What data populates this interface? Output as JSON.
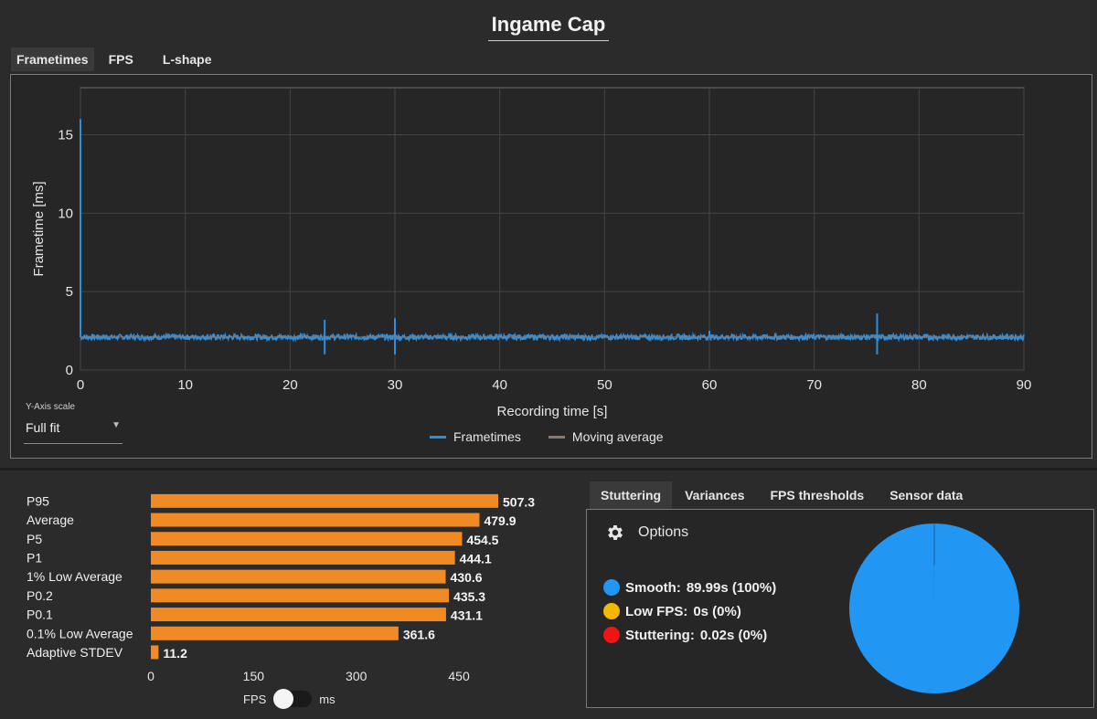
{
  "header": {
    "title": "Ingame Cap"
  },
  "top_tabs": [
    "Frametimes",
    "FPS",
    "L-shape"
  ],
  "yaxis_scale": {
    "label": "Y-Axis scale",
    "value": "Full fit"
  },
  "legend": [
    {
      "label": "Frametimes",
      "color": "#2d8fe0"
    },
    {
      "label": "Moving average",
      "color": "#8a7a70"
    }
  ],
  "bottom_tabs": [
    "Stuttering",
    "Variances",
    "FPS thresholds",
    "Sensor data"
  ],
  "options_label": "Options",
  "stutter_stats": [
    {
      "label": "Smooth:",
      "value": "89.99s (100%)",
      "color": "#2196f3"
    },
    {
      "label": "Low FPS:",
      "value": "0s (0%)",
      "color": "#f5b800"
    },
    {
      "label": "Stuttering:",
      "value": "0.02s (0%)",
      "color": "#f01414"
    }
  ],
  "toggle": {
    "left": "FPS",
    "right": "ms"
  },
  "chart_data": [
    {
      "type": "line",
      "title": "",
      "xlabel": "Recording time [s]",
      "ylabel": "Frametime [ms]",
      "xlim": [
        0,
        90
      ],
      "ylim": [
        0,
        18
      ],
      "xticks": [
        0,
        10,
        20,
        30,
        40,
        50,
        60,
        70,
        80,
        90
      ],
      "yticks": [
        0,
        5,
        10,
        15
      ],
      "grid": true,
      "series": [
        {
          "name": "Frametimes",
          "color": "#2d8fe0",
          "baseline": 2.1,
          "spikes": [
            {
              "x": 0.0,
              "y": 16.0
            },
            {
              "x": 23.3,
              "y": 3.2
            },
            {
              "x": 23.3,
              "y": 1.0
            },
            {
              "x": 30.0,
              "y": 3.3
            },
            {
              "x": 30.0,
              "y": 1.0
            },
            {
              "x": 60.0,
              "y": 2.5
            },
            {
              "x": 76.0,
              "y": 3.6
            },
            {
              "x": 76.0,
              "y": 1.0
            }
          ]
        },
        {
          "name": "Moving average",
          "color": "#8a7a70",
          "value": 2.1
        }
      ]
    },
    {
      "type": "bar",
      "orientation": "horizontal",
      "categories": [
        "P95",
        "Average",
        "P5",
        "P1",
        "1% Low Average",
        "P0.2",
        "P0.1",
        "0.1% Low Average",
        "Adaptive STDEV"
      ],
      "values": [
        507.3,
        479.9,
        454.5,
        444.1,
        430.6,
        435.3,
        431.1,
        361.6,
        11.2
      ],
      "value_labels": [
        "507.3",
        "479.9",
        "454.5",
        "444.1",
        "430.6",
        "435.3",
        "431.1",
        "361.6",
        "11.2"
      ],
      "xlim": [
        0,
        500
      ],
      "xticks": [
        0,
        150,
        300,
        450
      ],
      "color": "#f08a24"
    },
    {
      "type": "pie",
      "labels": [
        "Smooth",
        "Low FPS",
        "Stuttering"
      ],
      "values": [
        89.99,
        0,
        0.02
      ],
      "colors": [
        "#2196f3",
        "#f5b800",
        "#f01414"
      ]
    }
  ]
}
